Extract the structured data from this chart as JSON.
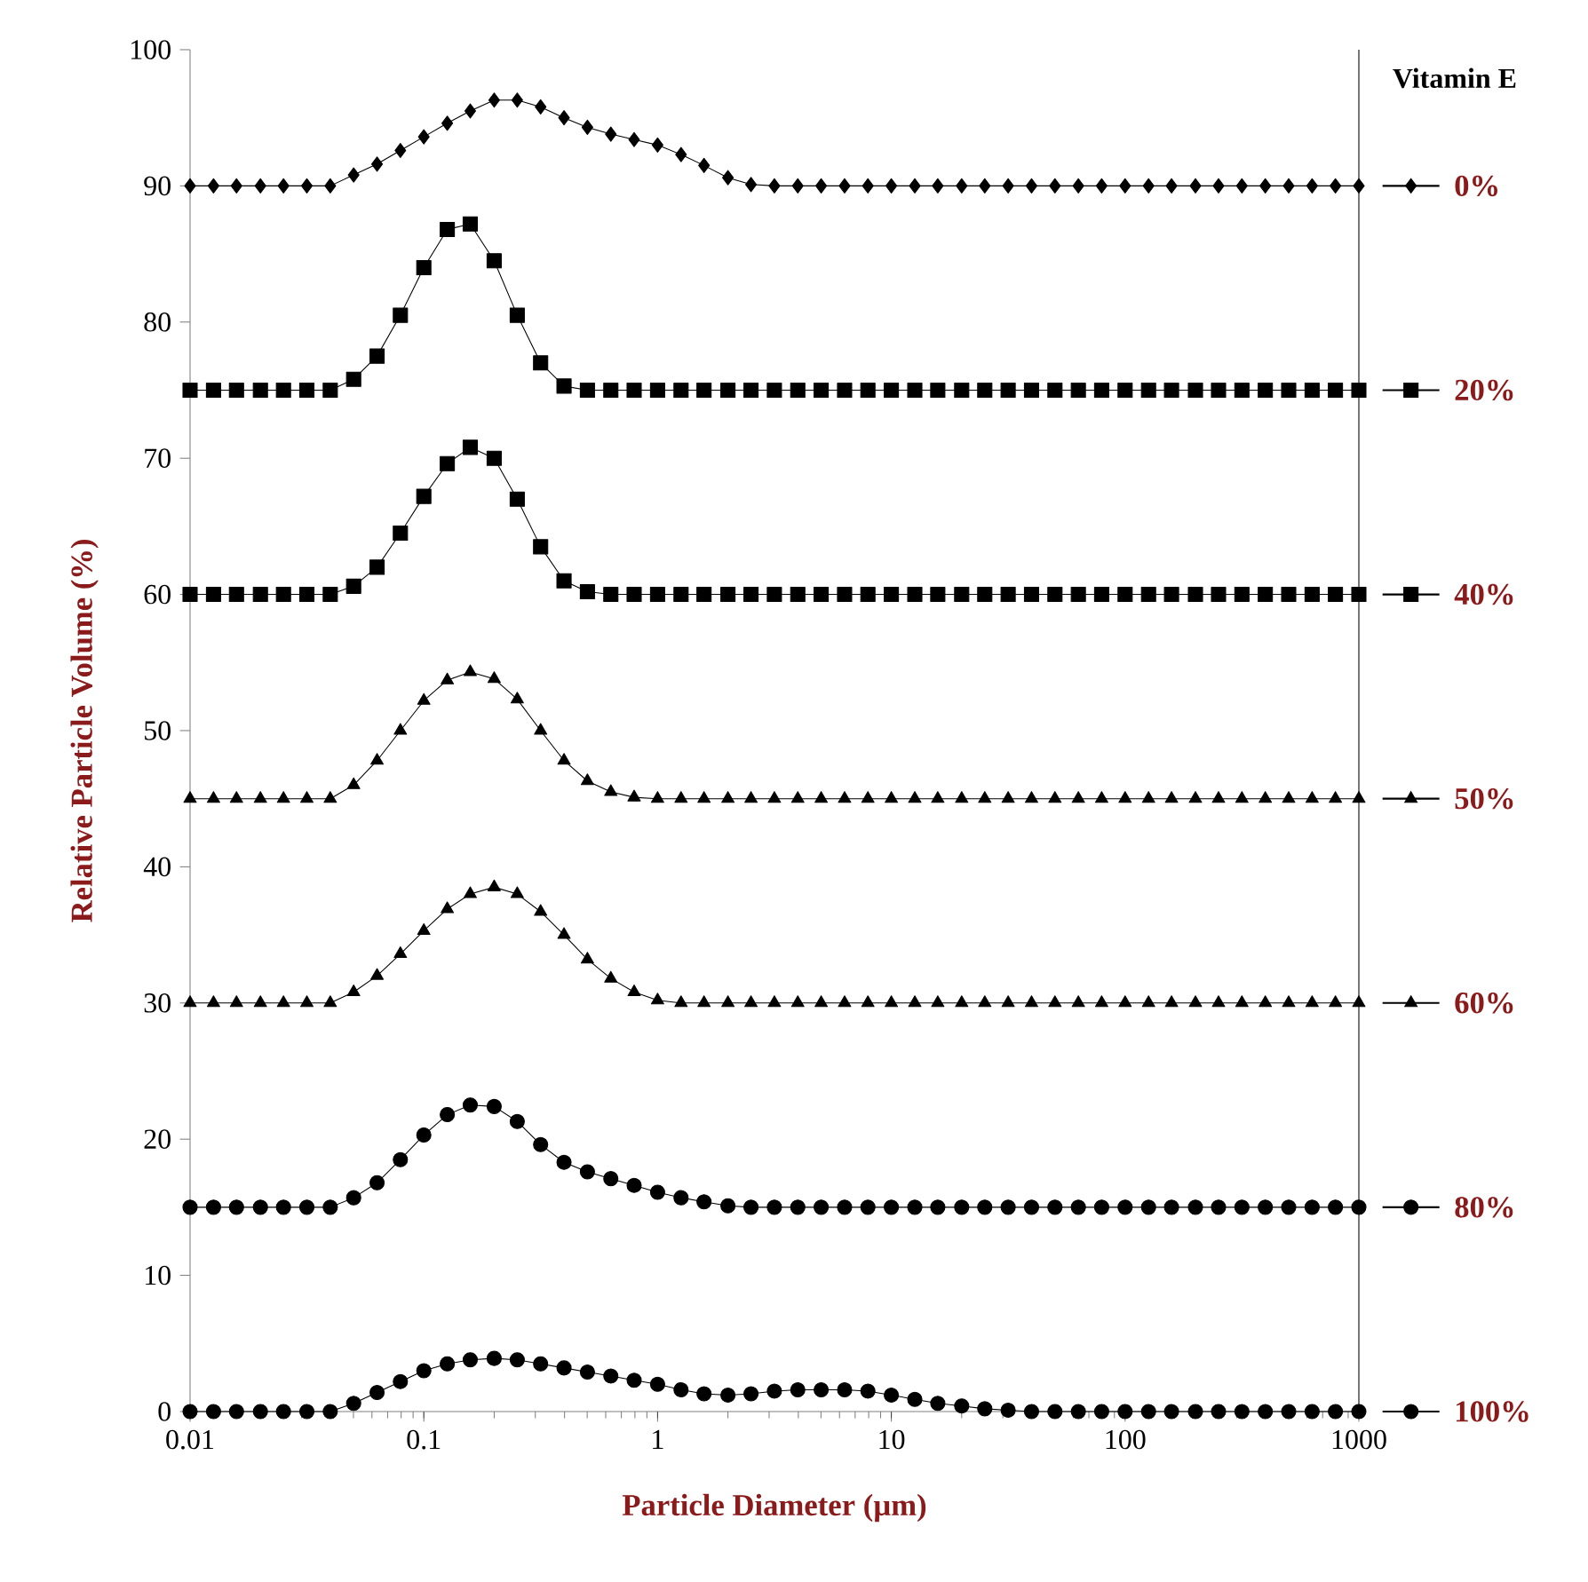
{
  "chart_data": {
    "type": "line",
    "xlabel": "Particle Diameter (µm)",
    "ylabel": "Relative Particle Volume (%)",
    "legend_title": "Vitamin E",
    "legend": "right",
    "log": "x",
    "line_style": "solid",
    "xlim": [
      0.01,
      1000
    ],
    "xticks": [
      0.01,
      0.1,
      1,
      10,
      100,
      1000
    ],
    "ylim": [
      0,
      100
    ],
    "yticks": [
      0,
      10,
      20,
      30,
      40,
      50,
      60,
      70,
      80,
      90,
      100
    ],
    "x": [
      0.01,
      0.0126,
      0.0158,
      0.02,
      0.0251,
      0.0316,
      0.0398,
      0.0501,
      0.0631,
      0.0794,
      0.1,
      0.126,
      0.158,
      0.2,
      0.251,
      0.316,
      0.398,
      0.501,
      0.631,
      0.794,
      1,
      1.26,
      1.58,
      2,
      2.51,
      3.16,
      3.98,
      5.01,
      6.31,
      7.94,
      10,
      12.6,
      15.8,
      20,
      25.1,
      31.6,
      39.8,
      50.1,
      63.1,
      79.4,
      100,
      126,
      158,
      200,
      251,
      316,
      398,
      501,
      631,
      794,
      1000
    ],
    "series": [
      {
        "name": "0%",
        "color": "#000000",
        "marker": "diamond",
        "values": [
          90,
          90,
          90,
          90,
          90,
          90,
          90,
          90.8,
          91.6,
          92.6,
          93.6,
          94.6,
          95.5,
          96.3,
          96.3,
          95.8,
          95,
          94.3,
          93.8,
          93.4,
          93,
          92.3,
          91.5,
          90.6,
          90.1,
          90,
          90,
          90,
          90,
          90,
          90,
          90,
          90,
          90,
          90,
          90,
          90,
          90,
          90,
          90,
          90,
          90,
          90,
          90,
          90,
          90,
          90,
          90,
          90,
          90,
          90
        ]
      },
      {
        "name": "20%",
        "color": "#000000",
        "marker": "square",
        "values": [
          75,
          75,
          75,
          75,
          75,
          75,
          75,
          75.8,
          77.5,
          80.5,
          84,
          86.8,
          87.2,
          84.5,
          80.5,
          77,
          75.3,
          75,
          75,
          75,
          75,
          75,
          75,
          75,
          75,
          75,
          75,
          75,
          75,
          75,
          75,
          75,
          75,
          75,
          75,
          75,
          75,
          75,
          75,
          75,
          75,
          75,
          75,
          75,
          75,
          75,
          75,
          75,
          75,
          75,
          75
        ]
      },
      {
        "name": "40%",
        "color": "#000000",
        "marker": "square",
        "values": [
          60,
          60,
          60,
          60,
          60,
          60,
          60,
          60.6,
          62,
          64.5,
          67.2,
          69.6,
          70.8,
          70,
          67,
          63.5,
          61,
          60.2,
          60,
          60,
          60,
          60,
          60,
          60,
          60,
          60,
          60,
          60,
          60,
          60,
          60,
          60,
          60,
          60,
          60,
          60,
          60,
          60,
          60,
          60,
          60,
          60,
          60,
          60,
          60,
          60,
          60,
          60,
          60,
          60,
          60
        ]
      },
      {
        "name": "50%",
        "color": "#000000",
        "marker": "triangle",
        "values": [
          45,
          45,
          45,
          45,
          45,
          45,
          45,
          46,
          47.8,
          50,
          52.2,
          53.7,
          54.3,
          53.8,
          52.3,
          50,
          47.8,
          46.3,
          45.5,
          45.1,
          45,
          45,
          45,
          45,
          45,
          45,
          45,
          45,
          45,
          45,
          45,
          45,
          45,
          45,
          45,
          45,
          45,
          45,
          45,
          45,
          45,
          45,
          45,
          45,
          45,
          45,
          45,
          45,
          45,
          45,
          45
        ]
      },
      {
        "name": "60%",
        "color": "#000000",
        "marker": "triangle",
        "values": [
          30,
          30,
          30,
          30,
          30,
          30,
          30,
          30.8,
          32,
          33.6,
          35.3,
          36.9,
          38,
          38.5,
          38,
          36.7,
          35,
          33.2,
          31.8,
          30.8,
          30.2,
          30,
          30,
          30,
          30,
          30,
          30,
          30,
          30,
          30,
          30,
          30,
          30,
          30,
          30,
          30,
          30,
          30,
          30,
          30,
          30,
          30,
          30,
          30,
          30,
          30,
          30,
          30,
          30,
          30,
          30
        ]
      },
      {
        "name": "80%",
        "color": "#000000",
        "marker": "circle",
        "values": [
          15,
          15,
          15,
          15,
          15,
          15,
          15,
          15.7,
          16.8,
          18.5,
          20.3,
          21.8,
          22.5,
          22.4,
          21.3,
          19.6,
          18.3,
          17.6,
          17.1,
          16.6,
          16.1,
          15.7,
          15.4,
          15.1,
          15,
          15,
          15,
          15,
          15,
          15,
          15,
          15,
          15,
          15,
          15,
          15,
          15,
          15,
          15,
          15,
          15,
          15,
          15,
          15,
          15,
          15,
          15,
          15,
          15,
          15,
          15
        ]
      },
      {
        "name": "100%",
        "color": "#000000",
        "marker": "circle",
        "values": [
          0,
          0,
          0,
          0,
          0,
          0,
          0,
          0.6,
          1.4,
          2.2,
          3,
          3.5,
          3.8,
          3.9,
          3.8,
          3.5,
          3.2,
          2.9,
          2.6,
          2.3,
          2,
          1.6,
          1.3,
          1.2,
          1.3,
          1.5,
          1.6,
          1.6,
          1.6,
          1.5,
          1.2,
          0.9,
          0.6,
          0.4,
          0.2,
          0.1,
          0,
          0,
          0,
          0,
          0,
          0,
          0,
          0,
          0,
          0,
          0,
          0,
          0,
          0,
          0
        ]
      }
    ]
  }
}
